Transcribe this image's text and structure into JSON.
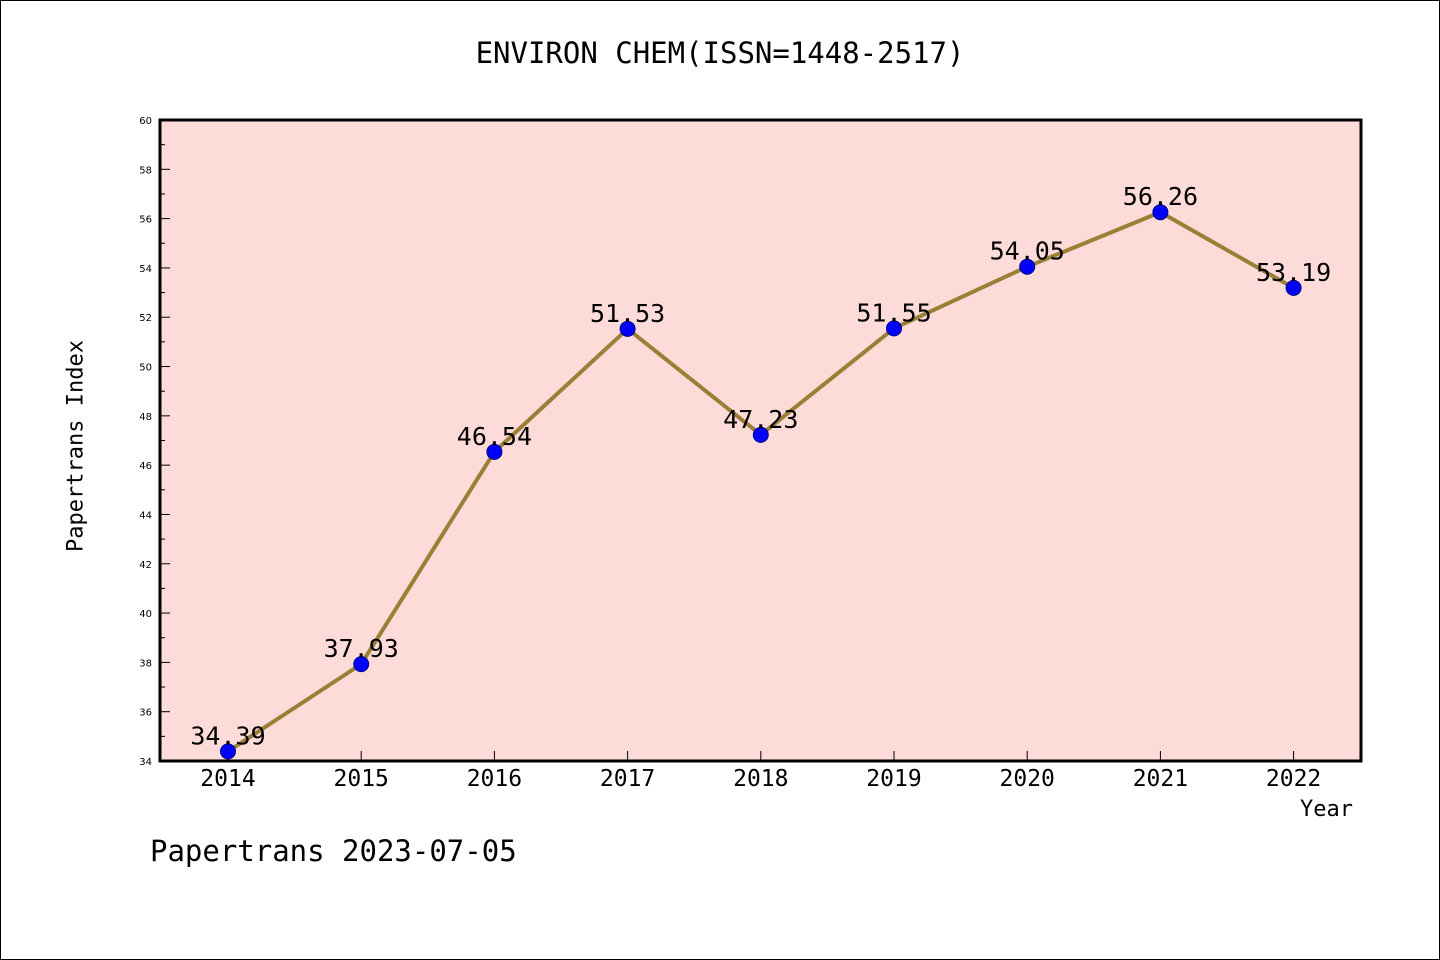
{
  "footer_text": "Papertrans 2023-07-05",
  "colors": {
    "plot_background": "#fddbd8",
    "line": "#9a7f36",
    "marker": "#0000ff"
  },
  "chart_data": {
    "type": "line",
    "title": "ENVIRON CHEM(ISSN=1448-2517)",
    "xlabel": "Year",
    "ylabel": "Papertrans Index",
    "categories": [
      "2014",
      "2015",
      "2016",
      "2017",
      "2018",
      "2019",
      "2020",
      "2021",
      "2022"
    ],
    "series": [
      {
        "values": [
          34.39,
          37.93,
          46.54,
          51.53,
          47.23,
          51.55,
          54.05,
          56.26,
          53.19
        ],
        "labels": [
          "34.39",
          "37.93",
          "46.54",
          "51.53",
          "47.23",
          "51.55",
          "54.05",
          "56.26",
          "53.19"
        ]
      }
    ],
    "ylim": [
      34,
      60
    ],
    "yticks": [
      "34",
      "36",
      "38",
      "40",
      "42",
      "44",
      "46",
      "48",
      "50",
      "52",
      "54",
      "56",
      "58",
      "60"
    ],
    "grid": false,
    "legend": "none"
  }
}
